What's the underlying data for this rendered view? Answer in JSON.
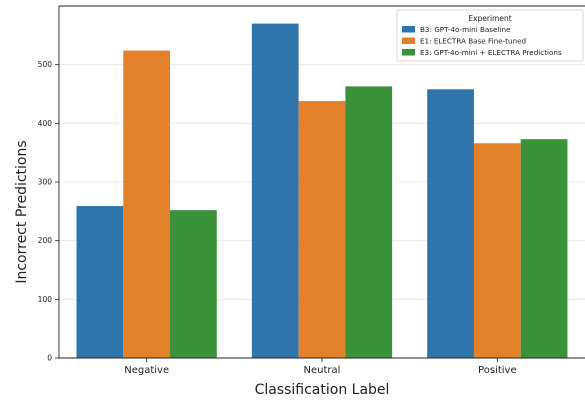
{
  "chart_data": {
    "type": "bar",
    "title": "",
    "xlabel": "Classification Label",
    "ylabel": "Incorrect Predictions",
    "categories": [
      "Negative",
      "Neutral",
      "Positive"
    ],
    "series": [
      {
        "name": "B3: GPT-4o-mini Baseline",
        "values": [
          259,
          570,
          458
        ],
        "color": "#2f75ab"
      },
      {
        "name": "E1: ELECTRA Base Fine-tuned",
        "values": [
          524,
          438,
          366
        ],
        "color": "#e3812b"
      },
      {
        "name": "E3: GPT-4o-mini + ELECTRA Predictions",
        "values": [
          252,
          463,
          373
        ],
        "color": "#3a923a"
      }
    ],
    "ylim": [
      0,
      600
    ],
    "yticks": [
      0,
      100,
      200,
      300,
      400,
      500
    ],
    "grid": true,
    "legend": {
      "title": "Experiment",
      "position": "top-right"
    }
  }
}
